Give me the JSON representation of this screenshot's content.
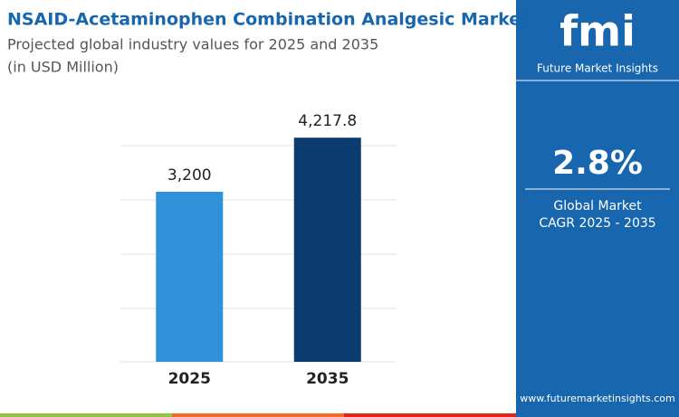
{
  "header": {
    "title": "NSAID-Acetaminophen Combination Analgesic Market",
    "subtitle": "Projected global industry values for 2025 and 2035",
    "unit_note": "(in USD Million)"
  },
  "chart_data": {
    "type": "bar",
    "categories": [
      "2025",
      "2035"
    ],
    "values": [
      3200,
      4217.8
    ],
    "value_labels": [
      "3,200",
      "4,217.8"
    ],
    "colors": [
      "#2f92d8",
      "#0c3b70"
    ],
    "ylim": [
      0,
      5000
    ]
  },
  "panel": {
    "logo": "fmi",
    "brand": "Future Market Insights",
    "cagr": "2.8%",
    "cagr_label_1": "Global Market",
    "cagr_label_2": "CAGR 2025 - 2035",
    "website": "www.futuremarketinsights.com"
  }
}
